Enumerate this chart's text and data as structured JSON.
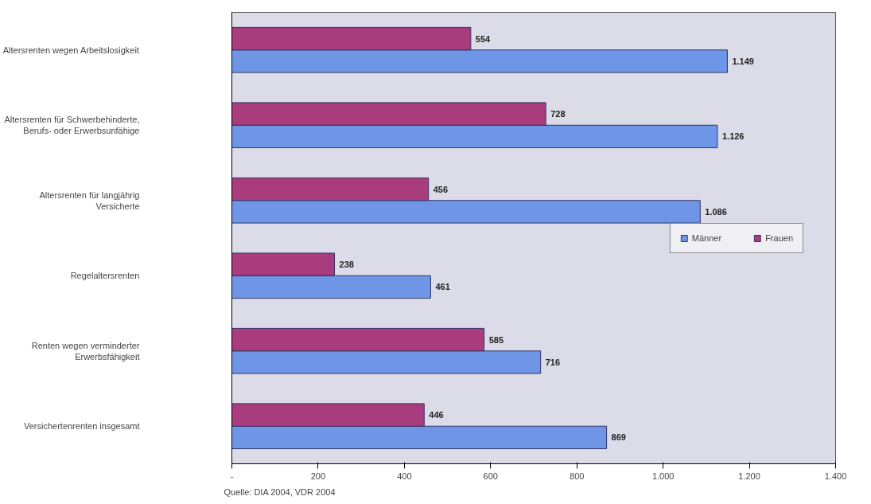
{
  "chart_data": {
    "type": "bar",
    "orientation": "horizontal",
    "categories": [
      "Altersrenten wegen Arbeitslosigkeit",
      "Altersrenten für Schwerbehinderte,\nBerufs- oder Erwerbsunfähige",
      "Altersrenten für langjährig\nVersicherte",
      "Regelaltersrenten",
      "Renten wegen verminderter\nErwerbsfähigkeit",
      "Versichertenrenten insgesamt"
    ],
    "series": [
      {
        "name": "Männer",
        "color": "#6f96e6",
        "values": [
          1149,
          1126,
          1086,
          461,
          716,
          869
        ],
        "value_labels": [
          "1.149",
          "1.126",
          "1.086",
          "461",
          "716",
          "869"
        ]
      },
      {
        "name": "Frauen",
        "color": "#a83c7c",
        "values": [
          554,
          728,
          456,
          238,
          585,
          446
        ],
        "value_labels": [
          "554",
          "728",
          "456",
          "238",
          "585",
          "446"
        ]
      }
    ],
    "xlim": [
      0,
      1400
    ],
    "xticks": [
      {
        "value": 0,
        "label": "-"
      },
      200,
      400,
      600,
      800,
      {
        "value": 1000,
        "label": "1.000"
      },
      {
        "value": 1200,
        "label": "1.200"
      },
      {
        "value": 1400,
        "label": "1.400"
      }
    ],
    "grid": false,
    "legend": "right",
    "annotations": [
      "Quelle: DIA 2004, VDR 2004"
    ]
  }
}
